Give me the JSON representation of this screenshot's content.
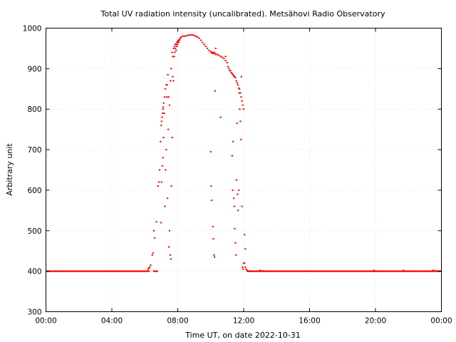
{
  "chart_data": {
    "type": "scatter",
    "title": "Total UV radiation intensity (uncalibrated). Metsähovi Radio Observatory",
    "xlabel": "Time UT, on date 2022-10-31",
    "ylabel": "Arbitrary unit",
    "xlim": [
      0,
      24
    ],
    "ylim": [
      300,
      1000
    ],
    "x_ticks": [
      {
        "value": 0,
        "label": "00:00"
      },
      {
        "value": 4,
        "label": "04:00"
      },
      {
        "value": 8,
        "label": "08:00"
      },
      {
        "value": 12,
        "label": "12:00"
      },
      {
        "value": 16,
        "label": "16:00"
      },
      {
        "value": 20,
        "label": "20:00"
      },
      {
        "value": 24,
        "label": "00:00"
      }
    ],
    "y_ticks": [
      300,
      400,
      500,
      600,
      700,
      800,
      900,
      1000
    ],
    "grid": true,
    "marker_color": "#ff0000",
    "series": [
      {
        "x": [
          6.2,
          6.25,
          6.3,
          6.35,
          6.45,
          6.5,
          6.55,
          6.6,
          6.7,
          6.8,
          6.85,
          6.9,
          6.95,
          7.0,
          7.02,
          7.05,
          7.08,
          7.1,
          7.12,
          7.15,
          7.2,
          7.25,
          7.3,
          7.35,
          7.4,
          7.45,
          7.5,
          7.55,
          7.6,
          7.65,
          7.7,
          7.75,
          7.8,
          7.85,
          7.9,
          7.95,
          8.0,
          8.05,
          8.1,
          8.15,
          8.2,
          8.3,
          8.4,
          8.5,
          8.6,
          8.7,
          8.8,
          8.9,
          9.0,
          9.1,
          9.2,
          9.3,
          9.4,
          9.5,
          9.6,
          9.7,
          9.8,
          9.9,
          10.0,
          10.05,
          10.1,
          10.15,
          10.2,
          10.25,
          10.3,
          10.4,
          10.5,
          10.6,
          10.7,
          10.8,
          10.9,
          11.0,
          11.05,
          11.1,
          11.15,
          11.2,
          11.25,
          11.3,
          11.35,
          11.4,
          11.45,
          11.5,
          11.55,
          11.6,
          11.65,
          11.7,
          11.75,
          11.8,
          11.85,
          11.9,
          11.95,
          12.0,
          12.05,
          12.1,
          12.15,
          12.2,
          12.25,
          12.3,
          12.35,
          12.4,
          12.5,
          13.0,
          13.2,
          13.4,
          19.9,
          20.1,
          21.7,
          21.9,
          23.5,
          23.7,
          23.9,
          6.98,
          7.02,
          7.06,
          7.1,
          7.14,
          7.18,
          7.22,
          7.26,
          7.3,
          7.34,
          7.38,
          7.42,
          7.46,
          7.5,
          7.54,
          7.58,
          7.62,
          7.66,
          7.7,
          7.74,
          7.78,
          7.82,
          7.86,
          7.9,
          7.94,
          7.98,
          8.02,
          8.06,
          8.1,
          10.0,
          10.03,
          10.06,
          10.1,
          10.13,
          10.16,
          10.2,
          10.23,
          10.26,
          10.3,
          10.6,
          10.9,
          11.3,
          11.33,
          11.36,
          11.4,
          11.43,
          11.46,
          11.5,
          11.53,
          11.56,
          11.6,
          11.63,
          11.66,
          11.7,
          11.73,
          11.76,
          11.8,
          11.83,
          11.86,
          11.9,
          11.93,
          11.96,
          12.0,
          12.05,
          12.1
        ],
        "y": [
          405,
          408,
          410,
          415,
          440,
          445,
          500,
          482,
          522,
          610,
          620,
          650,
          720,
          760,
          770,
          780,
          790,
          800,
          805,
          815,
          830,
          850,
          860,
          860,
          885,
          830,
          810,
          870,
          900,
          940,
          930,
          950,
          955,
          960,
          960,
          965,
          968,
          970,
          972,
          975,
          978,
          980,
          980,
          981,
          982,
          983,
          983,
          983,
          982,
          980,
          978,
          975,
          970,
          965,
          960,
          955,
          950,
          945,
          942,
          940,
          938,
          938,
          940,
          938,
          935,
          935,
          933,
          930,
          928,
          925,
          920,
          915,
          905,
          900,
          895,
          895,
          890,
          888,
          885,
          882,
          880,
          878,
          870,
          865,
          860,
          852,
          850,
          840,
          830,
          820,
          810,
          800,
          420,
          410,
          405,
          402,
          400,
          400,
          400,
          400,
          400,
          402,
          401,
          400,
          402,
          400,
          402,
          400,
          402,
          401,
          400,
          520,
          620,
          660,
          680,
          730,
          790,
          560,
          650,
          700,
          830,
          580,
          750,
          460,
          500,
          440,
          430,
          610,
          730,
          880,
          870,
          930,
          940,
          950,
          945,
          955,
          960,
          965,
          965,
          970,
          695,
          610,
          575,
          940,
          510,
          480,
          440,
          435,
          845,
          950,
          780,
          930,
          685,
          600,
          720,
          580,
          560,
          505,
          470,
          440,
          625,
          765,
          590,
          550,
          600,
          840,
          800,
          770,
          725,
          880,
          560,
          410,
          405,
          420,
          490,
          455
        ]
      }
    ]
  }
}
